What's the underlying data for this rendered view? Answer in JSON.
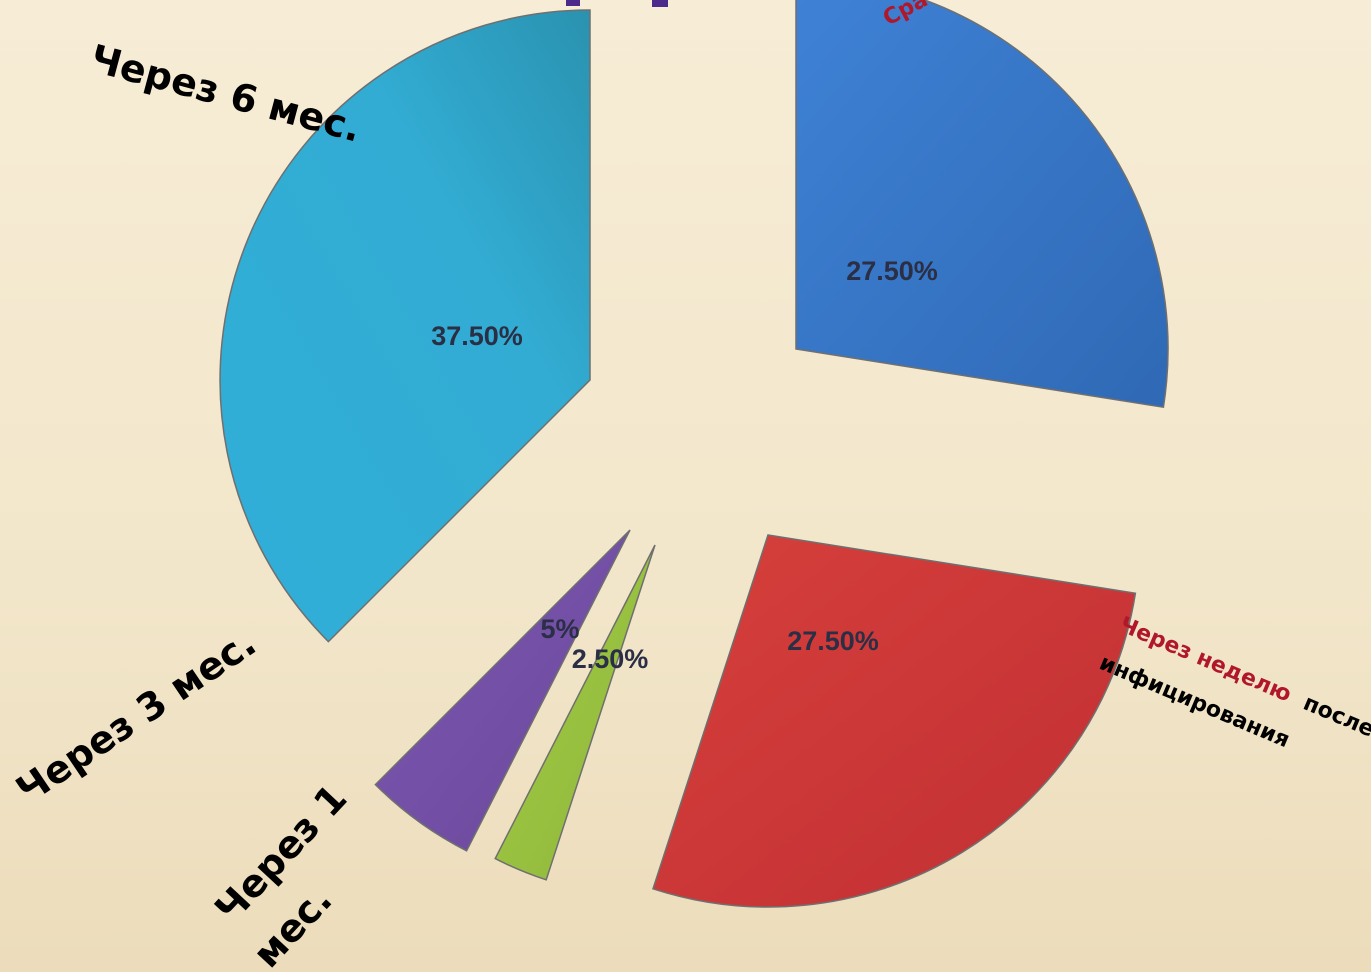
{
  "colors": {
    "background": "#f5ead2",
    "slice_outline": "#6f6f6f",
    "pct_text": "#2a2f45",
    "label_red": "#b0172b",
    "label_title_purple": "#4b2a8c"
  },
  "chart_data": {
    "type": "pie",
    "exploded": true,
    "slices": [
      {
        "key": "immediately",
        "label": "Сразу",
        "label_partial": "Сра",
        "value": 27.5,
        "pct_label": "27.50%",
        "color": "#3b79cc"
      },
      {
        "key": "week",
        "label": "Через неделю после инфицирования",
        "label_red": "Через неделю",
        "label_rest": "после",
        "label_line2": "инфицирования",
        "value": 27.5,
        "pct_label": "27.50%",
        "color": "#d13a3a"
      },
      {
        "key": "month1",
        "label": "Через 1 мес.",
        "label_line1": "Через 1",
        "label_line2": "мес.",
        "value": 2.5,
        "pct_label": "2.50%",
        "color": "#9bc440"
      },
      {
        "key": "month3",
        "label": "Через 3 мес.",
        "value": 5,
        "pct_label": "5%",
        "color": "#7451a8"
      },
      {
        "key": "month6",
        "label": "Через 6 мес.",
        "value": 37.5,
        "pct_label": "37.50%",
        "color": "#2fa9cf"
      }
    ]
  }
}
